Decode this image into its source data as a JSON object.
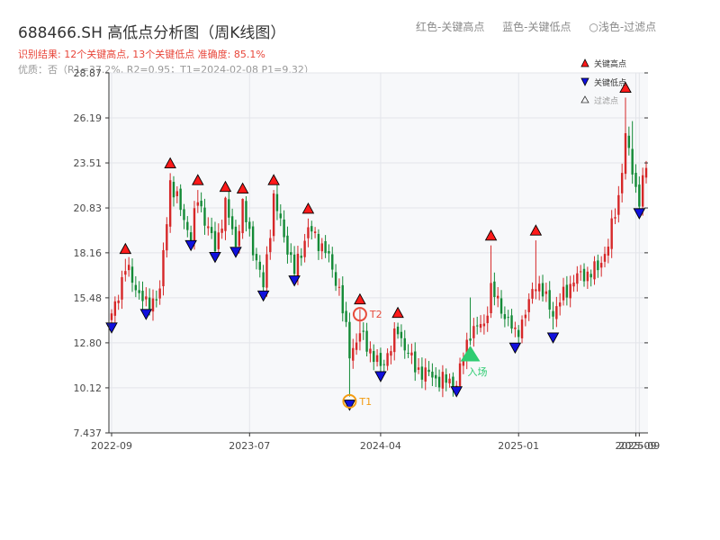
{
  "header": {
    "title": "688466.SH 高低点分析图（周K线图）",
    "legend_red": "红色-关键高点",
    "legend_blue": "蓝色-关键低点",
    "legend_light": "○浅色-过滤点",
    "subtitle": "识别结果: 12个关键高点, 13个关键低点  准确度: 85.1%",
    "info": "优质：否（R1=37.2%, R2=0.95；T1=2024-02-08 P1=9.32）"
  },
  "chart_data": {
    "type": "candlestick",
    "x_tick_labels": [
      "2022-09",
      "2023-07",
      "2024-04",
      "2025-01",
      "2025-09",
      "2025-09"
    ],
    "y_ticks": [
      7.437,
      10.12,
      12.8,
      15.48,
      18.16,
      20.83,
      23.51,
      26.19,
      28.87
    ],
    "y_tick_labels": [
      "7.437",
      "10.12",
      "12.80",
      "15.48",
      "18.16",
      "20.83",
      "23.51",
      "26.19",
      "28.87"
    ],
    "ylim": [
      7.437,
      28.87
    ],
    "x_index_range": [
      0,
      155
    ],
    "x_tick_index": [
      0,
      40,
      78,
      118,
      152,
      153
    ],
    "colors": {
      "up": "#d62728",
      "down": "#138a36",
      "high_marker": "#ff1a1a",
      "low_marker": "#1010dd",
      "t1": "#f39c12",
      "t2": "#e74c3c",
      "entry": "#2ecc71"
    },
    "legend": {
      "high": "关键高点",
      "low": "关键低点",
      "filtered": "过滤点"
    },
    "waypoints": [
      [
        0,
        14.3
      ],
      [
        4,
        17.3
      ],
      [
        10,
        15.0
      ],
      [
        14,
        15.8
      ],
      [
        17,
        22.4
      ],
      [
        23,
        19.1
      ],
      [
        25,
        21.4
      ],
      [
        30,
        18.4
      ],
      [
        33,
        21.0
      ],
      [
        36,
        18.7
      ],
      [
        38,
        20.9
      ],
      [
        44,
        16.1
      ],
      [
        47,
        21.4
      ],
      [
        53,
        17.0
      ],
      [
        57,
        19.6
      ],
      [
        62,
        18.3
      ],
      [
        66,
        16.0
      ],
      [
        69,
        12.2
      ],
      [
        72,
        13.3
      ],
      [
        74,
        12.7
      ],
      [
        78,
        11.3
      ],
      [
        83,
        13.5
      ],
      [
        88,
        11.3
      ],
      [
        95,
        10.6
      ],
      [
        100,
        10.4
      ],
      [
        104,
        13.5
      ],
      [
        108,
        13.9
      ],
      [
        110,
        16.0
      ],
      [
        117,
        13.3
      ],
      [
        120,
        14.5
      ],
      [
        123,
        16.5
      ],
      [
        128,
        14.6
      ],
      [
        131,
        15.6
      ],
      [
        134,
        16.6
      ],
      [
        141,
        17.2
      ],
      [
        144,
        18.7
      ],
      [
        147,
        21.5
      ],
      [
        149,
        25.1
      ],
      [
        152,
        22.0
      ],
      [
        153,
        21.4
      ],
      [
        155,
        23.2
      ]
    ],
    "spikes": [
      {
        "i": 4,
        "dir": "up",
        "to": 17.8
      },
      {
        "i": 17,
        "dir": "up",
        "to": 22.9
      },
      {
        "i": 25,
        "dir": "up",
        "to": 21.9
      },
      {
        "i": 33,
        "dir": "up",
        "to": 21.5
      },
      {
        "i": 38,
        "dir": "up",
        "to": 21.4
      },
      {
        "i": 47,
        "dir": "up",
        "to": 21.9
      },
      {
        "i": 57,
        "dir": "up",
        "to": 20.2
      },
      {
        "i": 69,
        "dir": "down",
        "to": 9.6
      },
      {
        "i": 72,
        "dir": "up",
        "to": 14.8
      },
      {
        "i": 83,
        "dir": "up",
        "to": 14.0
      },
      {
        "i": 104,
        "dir": "up",
        "to": 15.5
      },
      {
        "i": 110,
        "dir": "up",
        "to": 18.6
      },
      {
        "i": 123,
        "dir": "up",
        "to": 18.9
      },
      {
        "i": 128,
        "dir": "down",
        "to": 13.6
      },
      {
        "i": 149,
        "dir": "up",
        "to": 27.4
      },
      {
        "i": 151,
        "dir": "up",
        "to": 26.0
      }
    ],
    "key_highs": [
      {
        "i": 4,
        "price": 17.9
      },
      {
        "i": 17,
        "price": 23.0
      },
      {
        "i": 25,
        "price": 22.0
      },
      {
        "i": 33,
        "price": 21.6
      },
      {
        "i": 38,
        "price": 21.5
      },
      {
        "i": 47,
        "price": 22.0
      },
      {
        "i": 57,
        "price": 20.3
      },
      {
        "i": 72,
        "price": 14.9
      },
      {
        "i": 83,
        "price": 14.1
      },
      {
        "i": 110,
        "price": 18.7
      },
      {
        "i": 123,
        "price": 19.0
      },
      {
        "i": 149,
        "price": 27.5
      }
    ],
    "key_lows": [
      {
        "i": 0,
        "price": 14.2
      },
      {
        "i": 10,
        "price": 15.0
      },
      {
        "i": 23,
        "price": 19.1
      },
      {
        "i": 30,
        "price": 18.4
      },
      {
        "i": 36,
        "price": 18.7
      },
      {
        "i": 44,
        "price": 16.1
      },
      {
        "i": 53,
        "price": 17.0
      },
      {
        "i": 69,
        "price": 9.6
      },
      {
        "i": 78,
        "price": 11.3
      },
      {
        "i": 100,
        "price": 10.4
      },
      {
        "i": 117,
        "price": 13.0
      },
      {
        "i": 128,
        "price": 13.6
      },
      {
        "i": 153,
        "price": 21.0
      }
    ],
    "annotations": [
      {
        "label": "T1",
        "i": 69,
        "price": 9.32,
        "kind": "t1"
      },
      {
        "label": "T2",
        "i": 72,
        "price": 14.5,
        "kind": "t2"
      },
      {
        "label": "入场",
        "i": 104,
        "price": 12.1,
        "kind": "entry"
      }
    ]
  }
}
